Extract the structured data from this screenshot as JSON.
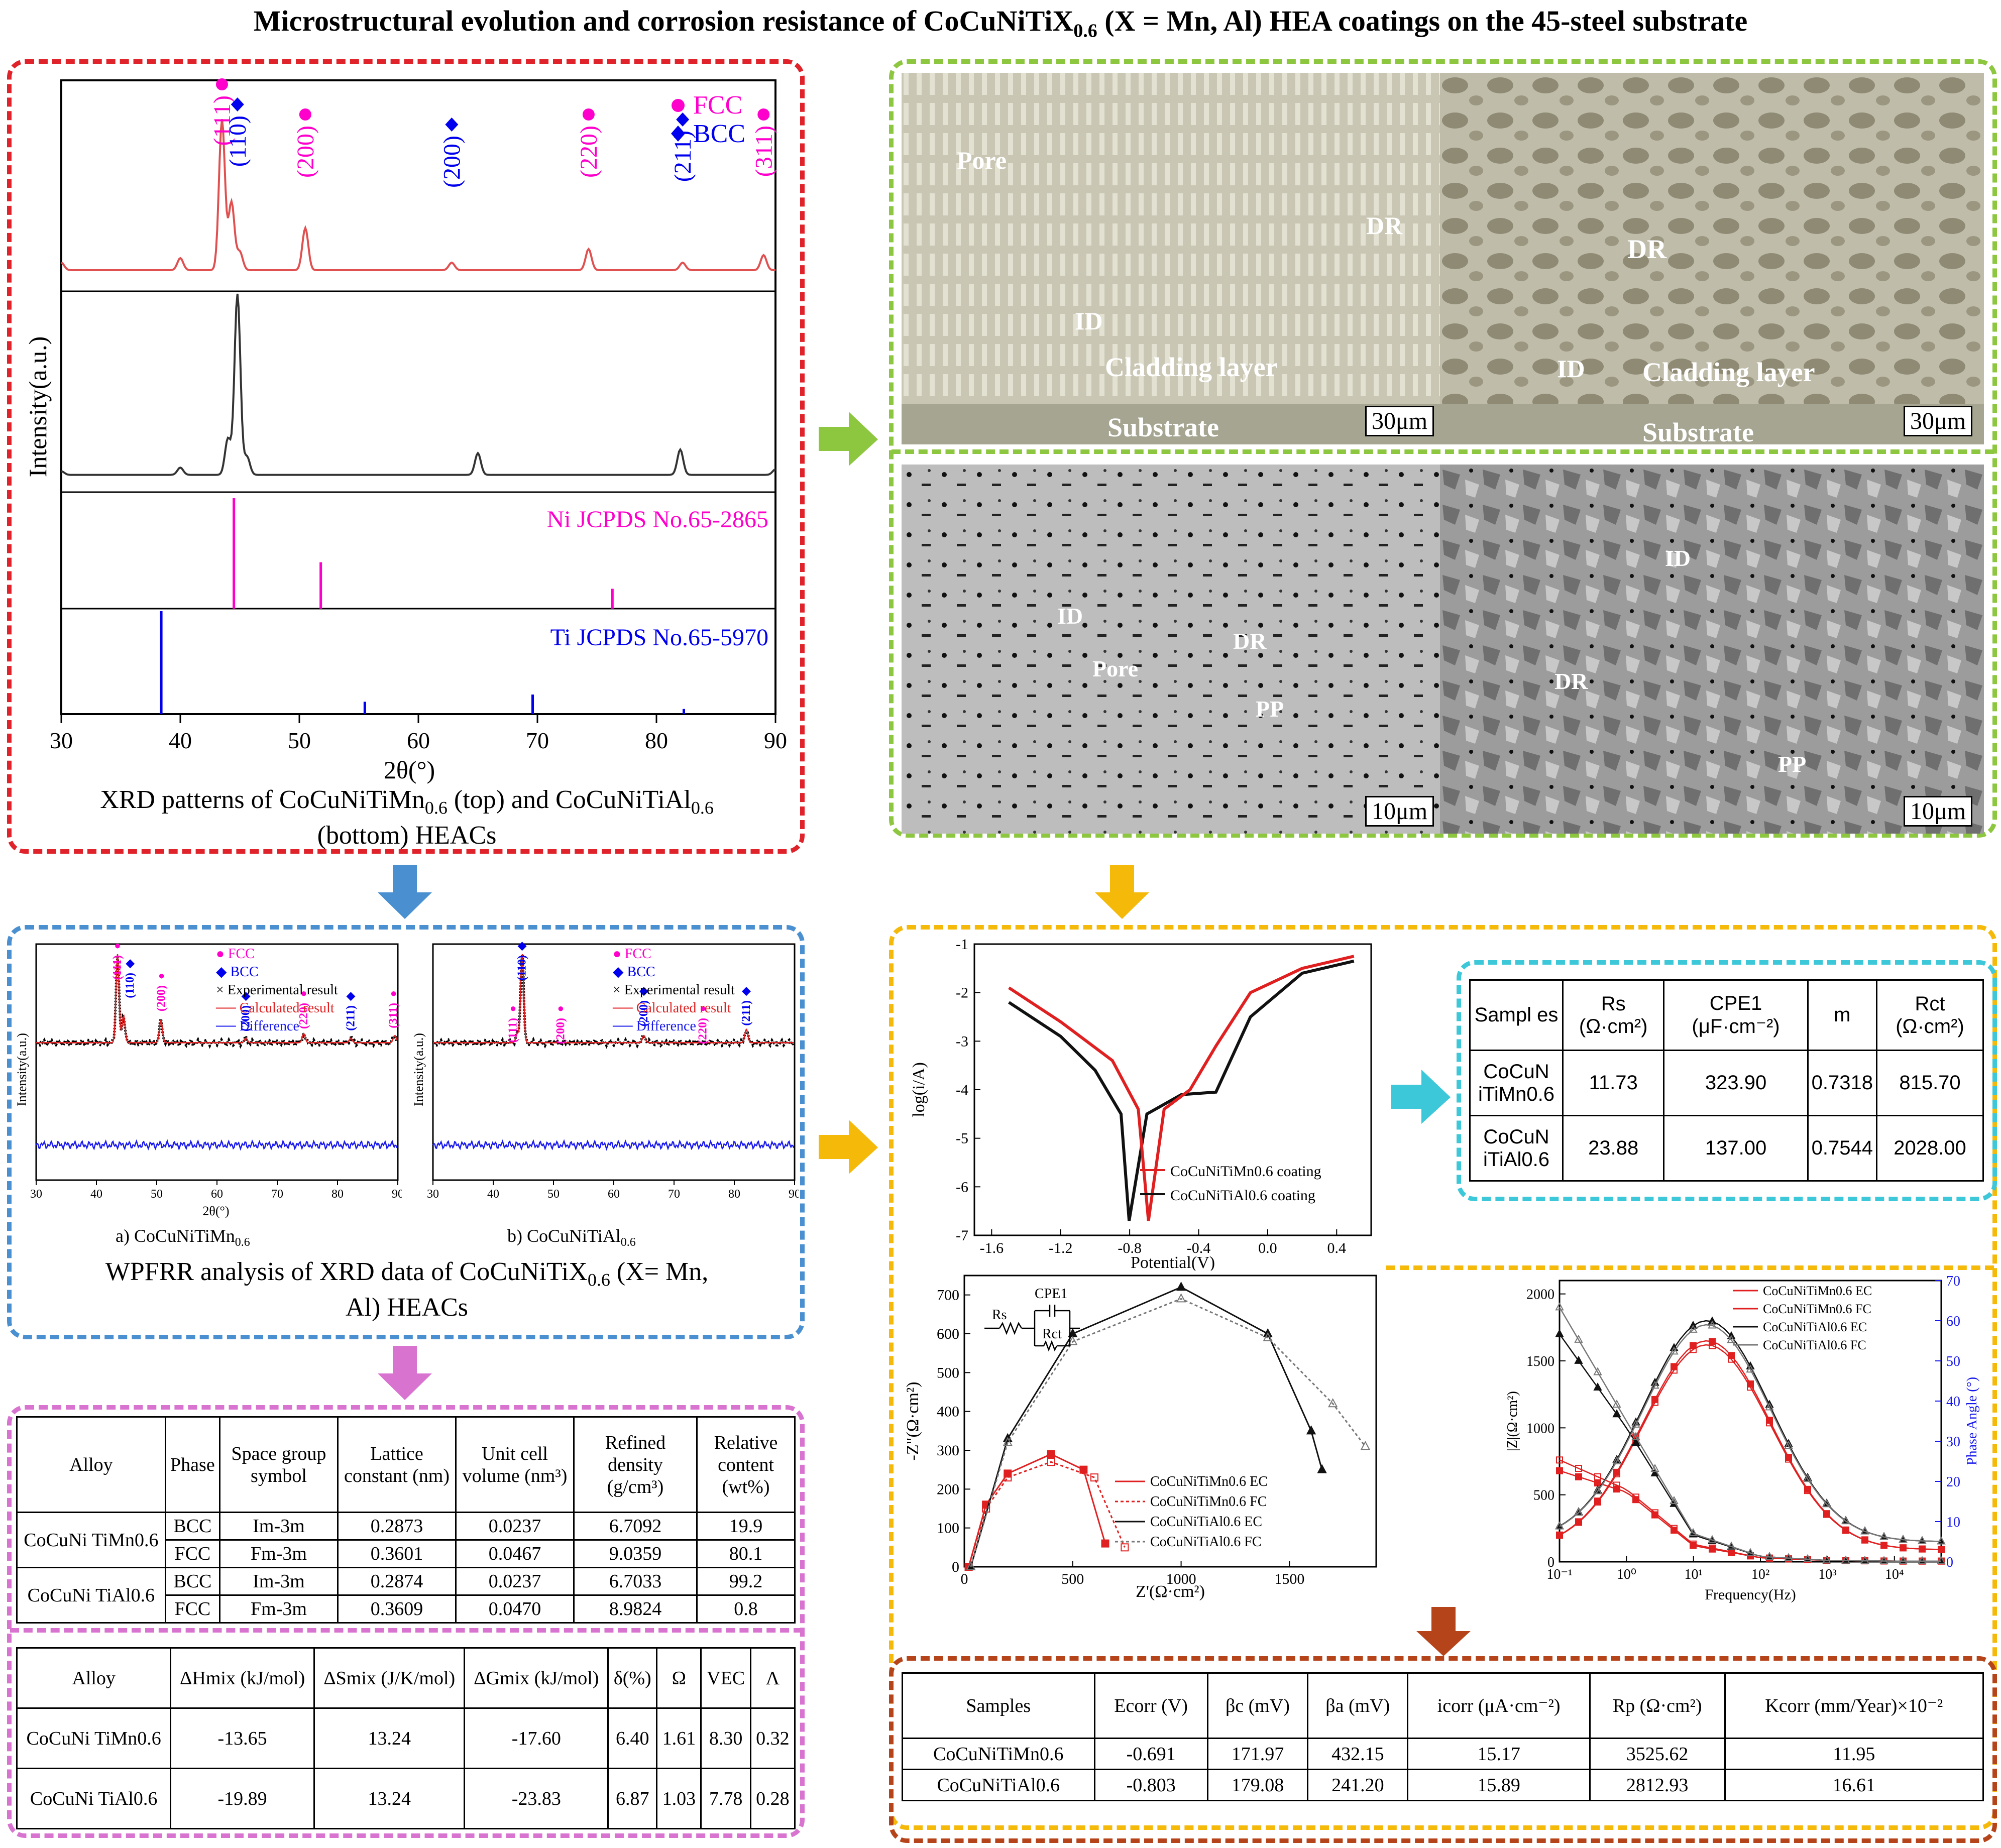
{
  "title": {
    "prefix": "Microstructural evolution and corrosion resistance of CoCuNiTiX",
    "sub": "0.6",
    "suffix": " (X = Mn, Al) HEA coatings on the 45-steel substrate"
  },
  "colors": {
    "red_panel": "#e0222a",
    "green_panel": "#8dc63f",
    "blue_panel": "#4a90d0",
    "magenta_panel": "#d873d0",
    "orange_panel": "#f5b90a",
    "cyan_panel": "#3cc8d8",
    "brown_panel": "#b5441a",
    "fcc": "#ff00cc",
    "bcc": "#0000ee",
    "mn_curve": "#e02020",
    "al_curve": "#111111"
  },
  "xrd": {
    "legend": [
      {
        "symbol": "●",
        "label": "FCC"
      },
      {
        "symbol": "◆",
        "label": "BCC"
      }
    ],
    "ylabel": "Intensity(a.u.)",
    "xlabel": "2θ(°)",
    "xticks": [
      "30",
      "40",
      "50",
      "60",
      "70",
      "80",
      "90"
    ],
    "peak_labels": [
      "(111)",
      "(110)",
      "(200)",
      "(200)",
      "(220)",
      "(211)",
      "(311)"
    ],
    "ref_ni": "Ni JCPDS No.65-2865",
    "ref_ti": "Ti JCPDS No.65-5970",
    "caption_a": "XRD patterns of CoCuNiTiMn",
    "caption_sub": "0.6",
    "caption_b": " (top) and CoCuNiTiAl",
    "caption_c": "(bottom) HEACs"
  },
  "chart_data": [
    {
      "type": "line",
      "title": "",
      "xlabel": "2θ(°)",
      "ylabel": "Intensity(a.u.)",
      "xlim": [
        30,
        90
      ],
      "series": [
        {
          "name": "CoCuNiTiMn0.6",
          "x": [
            30,
            40,
            43.5,
            44.3,
            45,
            50.5,
            62.8,
            74.3,
            82.2,
            89
          ],
          "y": [
            0.05,
            0.08,
            1.0,
            0.45,
            0.12,
            0.28,
            0.05,
            0.14,
            0.05,
            0.1
          ]
        },
        {
          "name": "CoCuNiTiAl0.6",
          "x": [
            30,
            40,
            44,
            44.8,
            45.6,
            65,
            82,
            90
          ],
          "y": [
            0.02,
            0.04,
            0.2,
            1.0,
            0.1,
            0.12,
            0.14,
            0.03
          ]
        }
      ],
      "reference_lines": [
        {
          "name": "Ni JCPDS No.65-2865",
          "positions": [
            44.5,
            51.8,
            76.3
          ],
          "heights": [
            1.0,
            0.42,
            0.18
          ]
        },
        {
          "name": "Ti JCPDS No.65-5970",
          "positions": [
            38.4,
            55.5,
            69.6,
            82.3
          ],
          "heights": [
            1.0,
            0.12,
            0.19,
            0.05
          ]
        }
      ]
    },
    {
      "type": "line",
      "title": "",
      "xlabel": "Potential(V)",
      "ylabel": "log(i/A)",
      "xlim": [
        -1.7,
        0.6
      ],
      "ylim": [
        -7,
        -1
      ],
      "series": [
        {
          "name": "CoCuNiTiMn0.6 coating",
          "x": [
            -1.5,
            -1.2,
            -0.9,
            -0.75,
            -0.691,
            -0.6,
            -0.45,
            -0.3,
            -0.1,
            0.2,
            0.5
          ],
          "y": [
            -1.9,
            -2.6,
            -3.4,
            -4.4,
            -6.7,
            -4.4,
            -4.0,
            -3.1,
            -2.0,
            -1.5,
            -1.25
          ]
        },
        {
          "name": "CoCuNiTiAl0.6 coating",
          "x": [
            -1.5,
            -1.2,
            -1.0,
            -0.85,
            -0.803,
            -0.7,
            -0.5,
            -0.3,
            -0.1,
            0.2,
            0.5
          ],
          "y": [
            -2.2,
            -2.9,
            -3.6,
            -4.5,
            -6.7,
            -4.5,
            -4.1,
            -4.05,
            -2.5,
            -1.6,
            -1.35
          ]
        }
      ]
    },
    {
      "type": "line",
      "title": "",
      "xlabel": "Z'(Ω·cm²)",
      "ylabel": "-Z\"(Ω·cm²)",
      "xlim": [
        0,
        1900
      ],
      "ylim": [
        0,
        750
      ],
      "series": [
        {
          "name": "CoCuNiTiMn0.6 EC",
          "x": [
            20,
            100,
            200,
            400,
            550,
            650
          ],
          "y": [
            0,
            160,
            240,
            290,
            250,
            60
          ]
        },
        {
          "name": "CoCuNiTiMn0.6 FC",
          "x": [
            20,
            100,
            200,
            400,
            600,
            740
          ],
          "y": [
            0,
            150,
            230,
            270,
            230,
            50
          ]
        },
        {
          "name": "CoCuNiTiAl0.6 EC",
          "x": [
            30,
            200,
            500,
            1000,
            1400,
            1600,
            1650
          ],
          "y": [
            0,
            330,
            600,
            720,
            600,
            350,
            250
          ]
        },
        {
          "name": "CoCuNiTiAl0.6 FC",
          "x": [
            30,
            200,
            500,
            1000,
            1400,
            1700,
            1850
          ],
          "y": [
            0,
            320,
            580,
            690,
            590,
            420,
            310
          ]
        }
      ]
    },
    {
      "type": "line",
      "title": "",
      "xlabel": "Frequency(Hz)",
      "ylabel": "|Z|(Ω·cm²)",
      "y2label": "Phase Angle (°)",
      "x_log": true,
      "series": [
        {
          "name": "CoCuNiTiMn0.6 EC",
          "x": [
            0.1,
            1,
            10,
            100,
            1000,
            10000,
            50000
          ],
          "y": [
            680,
            520,
            120,
            30,
            10,
            5,
            5
          ]
        },
        {
          "name": "CoCuNiTiMn0.6 FC",
          "x": [
            0.1,
            1,
            10,
            100,
            1000,
            10000,
            50000
          ],
          "y": [
            760,
            540,
            130,
            30,
            10,
            5,
            5
          ]
        },
        {
          "name": "CoCuNiTiAl0.6 EC",
          "x": [
            0.1,
            1,
            10,
            100,
            1000,
            10000,
            50000
          ],
          "y": [
            1700,
            1000,
            200,
            40,
            10,
            5,
            5
          ]
        },
        {
          "name": "CoCuNiTiAl0.6 FC",
          "x": [
            0.1,
            1,
            10,
            100,
            1000,
            10000,
            50000
          ],
          "y": [
            1900,
            1050,
            210,
            40,
            10,
            5,
            5
          ]
        }
      ]
    }
  ],
  "micro": {
    "tl": {
      "pore": "Pore",
      "dr": "DR",
      "id": "ID",
      "cl": "Cladding layer",
      "sub": "Substrate",
      "scale": "30μm"
    },
    "tr": {
      "dr": "DR",
      "id": "ID",
      "cl": "Cladding layer",
      "sub": "Substrate",
      "scale": "30μm"
    },
    "bl": {
      "id": "ID",
      "pore": "Pore",
      "dr": "DR",
      "pp": "PP",
      "scale": "10μm"
    },
    "br": {
      "id": "ID",
      "dr": "DR",
      "pp": "PP",
      "scale": "10μm"
    }
  },
  "wpfrr": {
    "legend": [
      "FCC",
      "BCC",
      "Experimental result",
      "Calculated result",
      "Difference"
    ],
    "ylabel": "Intensity(a.u.)",
    "xlabel": "2θ(°)",
    "xticks": [
      "30",
      "40",
      "50",
      "60",
      "70",
      "80",
      "90"
    ],
    "a_peaks": [
      "(111)",
      "(110)",
      "(200)",
      "(200)",
      "(220)",
      "(211)",
      "(311)"
    ],
    "b_peaks": [
      "(110)",
      "(111)",
      "(200)",
      "(200)",
      "(220)",
      "(211)"
    ],
    "cap_a": "a) CoCuNiTiMn",
    "cap_b": "b) CoCuNiTiAl",
    "sub": "0.6",
    "caption_a": "WPFRR analysis of XRD data of CoCuNiTiX",
    "caption_b": " (X= Mn,",
    "caption_c": "Al) HEACs"
  },
  "lattice_table": {
    "headers": [
      "Alloy",
      "Phase",
      "Space group symbol",
      "Lattice constant (nm)",
      "Unit cell volume (nm³)",
      "Refined density (g/cm³)",
      "Relative content (wt%)"
    ],
    "alloys": [
      "CoCuNi TiMn0.6",
      "CoCuNi TiAl0.6"
    ],
    "rows": [
      [
        "BCC",
        "Im-3m",
        "0.2873",
        "0.0237",
        "6.7092",
        "19.9"
      ],
      [
        "FCC",
        "Fm-3m",
        "0.3601",
        "0.0467",
        "9.0359",
        "80.1"
      ],
      [
        "BCC",
        "Im-3m",
        "0.2874",
        "0.0237",
        "6.7033",
        "99.2"
      ],
      [
        "FCC",
        "Fm-3m",
        "0.3609",
        "0.0470",
        "8.9824",
        "0.8"
      ]
    ]
  },
  "thermo_table": {
    "headers": [
      "Alloy",
      "ΔHmix (kJ/mol)",
      "ΔSmix (J/K/mol)",
      "ΔGmix (kJ/mol)",
      "δ(%)",
      "Ω",
      "VEC",
      "Λ"
    ],
    "rows": [
      [
        "CoCuNi TiMn0.6",
        "-13.65",
        "13.24",
        "-17.60",
        "6.40",
        "1.61",
        "8.30",
        "0.32"
      ],
      [
        "CoCuNi TiAl0.6",
        "-19.89",
        "13.24",
        "-23.83",
        "6.87",
        "1.03",
        "7.78",
        "0.28"
      ]
    ]
  },
  "polarization": {
    "xlabel": "Potential(V)",
    "ylabel": "log(i/A)",
    "xticks": [
      "-1.6",
      "-1.2",
      "-0.8",
      "-0.4",
      "0.0",
      "0.4"
    ],
    "yticks": [
      "-1",
      "-2",
      "-3",
      "-4",
      "-5",
      "-6",
      "-7"
    ],
    "legend": [
      "CoCuNiTiMn0.6 coating",
      "CoCuNiTiAl0.6 coating"
    ]
  },
  "eis_table": {
    "headers": [
      "Sampl es",
      "Rs (Ω·cm²)",
      "CPE1 (μF·cm⁻²)",
      "m",
      "Rct (Ω·cm²)"
    ],
    "rows": [
      [
        "CoCuN iTiMn0.6",
        "11.73",
        "323.90",
        "0.7318",
        "815.70"
      ],
      [
        "CoCuN iTiAl0.6",
        "23.88",
        "137.00",
        "0.7544",
        "2028.00"
      ]
    ]
  },
  "nyquist": {
    "xlabel": "Z'(Ω·cm²)",
    "ylabel": "-Z\"(Ω·cm²)",
    "xticks": [
      "0",
      "500",
      "1000",
      "1500"
    ],
    "yticks": [
      "0",
      "100",
      "200",
      "300",
      "400",
      "500",
      "600",
      "700"
    ],
    "circuit": {
      "rs": "Rs",
      "cpe": "CPE1",
      "rct": "Rct"
    },
    "legend": [
      "CoCuNiTiMn0.6 EC",
      "CoCuNiTiMn0.6 FC",
      "CoCuNiTiAl0.6 EC",
      "CoCuNiTiAl0.6 FC"
    ]
  },
  "bode": {
    "xlabel": "Frequency(Hz)",
    "ylabel": "|Z|(Ω·cm²)",
    "y2label": "Phase Angle (°)",
    "yticks": [
      "0",
      "500",
      "1000",
      "1500",
      "2000"
    ],
    "y2ticks": [
      "0",
      "10",
      "20",
      "30",
      "40",
      "50",
      "60",
      "70"
    ],
    "xticks": [
      "10⁻¹",
      "10⁰",
      "10¹",
      "10²",
      "10³",
      "10⁴"
    ],
    "legend": [
      "CoCuNiTiMn0.6 EC",
      "CoCuNiTiMn0.6 FC",
      "CoCuNiTiAl0.6 EC",
      "CoCuNiTiAl0.6 FC"
    ]
  },
  "corrosion_table": {
    "headers": [
      "Samples",
      "Ecorr (V)",
      "βc (mV)",
      "βa (mV)",
      "icorr (μA·cm⁻²)",
      "Rp (Ω·cm²)",
      "Kcorr (mm/Year)×10⁻²"
    ],
    "rows": [
      [
        "CoCuNiTiMn0.6",
        "-0.691",
        "171.97",
        "432.15",
        "15.17",
        "3525.62",
        "11.95"
      ],
      [
        "CoCuNiTiAl0.6",
        "-0.803",
        "179.08",
        "241.20",
        "15.89",
        "2812.93",
        "16.61"
      ]
    ]
  }
}
